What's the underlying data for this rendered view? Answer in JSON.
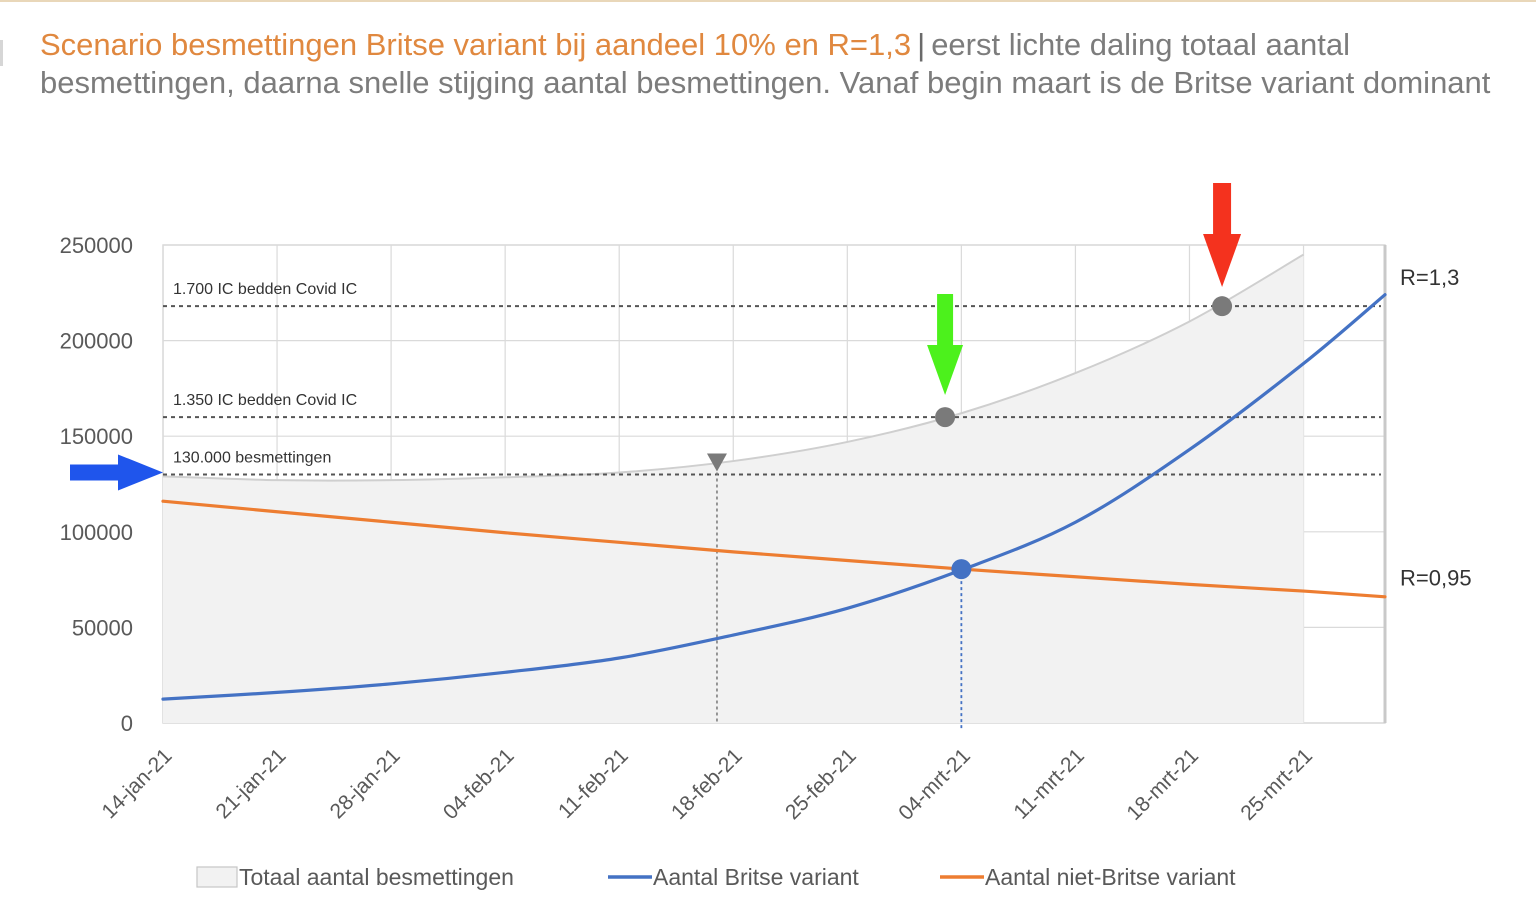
{
  "title": {
    "highlight": "Scenario besmettingen Britse variant bij aandeel 10% en R=1,3",
    "separator": "|",
    "rest": "eerst lichte daling totaal aantal besmettingen, daarna snelle stijging aantal besmettingen. Vanaf begin maart is de Britse variant dominant"
  },
  "colors": {
    "title_accent": "#e0883f",
    "british": "#4472c4",
    "non_british": "#ed7d31",
    "total_fill": "#f2f2f2",
    "total_line": "#cfcfcf",
    "marker": "#7a7a7a",
    "arrow_red": "#f4321e",
    "arrow_green": "#4cf11c",
    "arrow_blue": "#1f55ec"
  },
  "chart_data": {
    "type": "area",
    "ylim": [
      0,
      250000
    ],
    "yticks": [
      "0",
      "50000",
      "100000",
      "150000",
      "200000",
      "250000"
    ],
    "x_range": [
      "14-jan-21",
      "30-mrt-21"
    ],
    "xticks": [
      "14-jan-21",
      "21-jan-21",
      "28-jan-21",
      "04-feb-21",
      "11-feb-21",
      "18-feb-21",
      "25-feb-21",
      "04-mrt-21",
      "11-mrt-21",
      "18-mrt-21",
      "25-mrt-21"
    ],
    "series": [
      {
        "name": "Totaal aantal besmettingen",
        "kind": "area",
        "x": [
          "14-jan-21",
          "21-jan-21",
          "28-jan-21",
          "04-feb-21",
          "11-feb-21",
          "18-feb-21",
          "25-feb-21",
          "04-mrt-21",
          "11-mrt-21",
          "18-mrt-21",
          "25-mrt-21"
        ],
        "values": [
          129000,
          127000,
          127000,
          128500,
          131000,
          137000,
          147000,
          162000,
          183000,
          210000,
          245000
        ]
      },
      {
        "name": "Aantal Britse variant",
        "kind": "line",
        "x": [
          "14-jan-21",
          "21-jan-21",
          "28-jan-21",
          "04-feb-21",
          "11-feb-21",
          "18-feb-21",
          "25-feb-21",
          "04-mrt-21",
          "11-mrt-21",
          "18-mrt-21",
          "25-mrt-21",
          "30-mrt-21"
        ],
        "values": [
          12500,
          16000,
          20500,
          26500,
          34000,
          46000,
          60000,
          80000,
          105000,
          143000,
          188000,
          224000
        ]
      },
      {
        "name": "Aantal niet-Britse variant",
        "kind": "line",
        "x": [
          "14-jan-21",
          "21-jan-21",
          "28-jan-21",
          "04-feb-21",
          "11-feb-21",
          "18-feb-21",
          "25-feb-21",
          "04-mrt-21",
          "11-mrt-21",
          "18-mrt-21",
          "25-mrt-21",
          "30-mrt-21"
        ],
        "values": [
          116000,
          110500,
          105000,
          99500,
          94500,
          89500,
          85000,
          80500,
          76500,
          72500,
          69000,
          66000
        ]
      }
    ],
    "reference_lines": [
      {
        "label": "1.700 IC bedden Covid IC",
        "value": 218000
      },
      {
        "label": "1.350 IC bedden Covid IC",
        "value": 160000
      },
      {
        "label": "130.000 besmettingen",
        "value": 130000
      }
    ],
    "markers": [
      {
        "x": "17-feb-21",
        "value": 131000,
        "shape": "triangle-down"
      },
      {
        "x": "03-mrt-21",
        "value": 160000,
        "shape": "dot"
      },
      {
        "x": "04-mrt-21",
        "value": 80500,
        "shape": "dot"
      },
      {
        "x": "20-mrt-21",
        "value": 218000,
        "shape": "dot"
      }
    ],
    "right_labels": [
      {
        "text": "R=1,3",
        "value": 229000
      },
      {
        "text": "R=0,95",
        "value": 72000
      }
    ],
    "arrows": [
      {
        "color": "red",
        "direction": "down",
        "points_to": "20-mrt-21"
      },
      {
        "color": "green",
        "direction": "down",
        "points_to": "03-mrt-21"
      },
      {
        "color": "blue",
        "direction": "right",
        "points_to": 130000
      }
    ],
    "legend": {
      "position": "bottom",
      "entries": [
        "Totaal aantal besmettingen",
        "Aantal Britse variant",
        "Aantal niet-Britse variant"
      ]
    },
    "grid": true
  }
}
